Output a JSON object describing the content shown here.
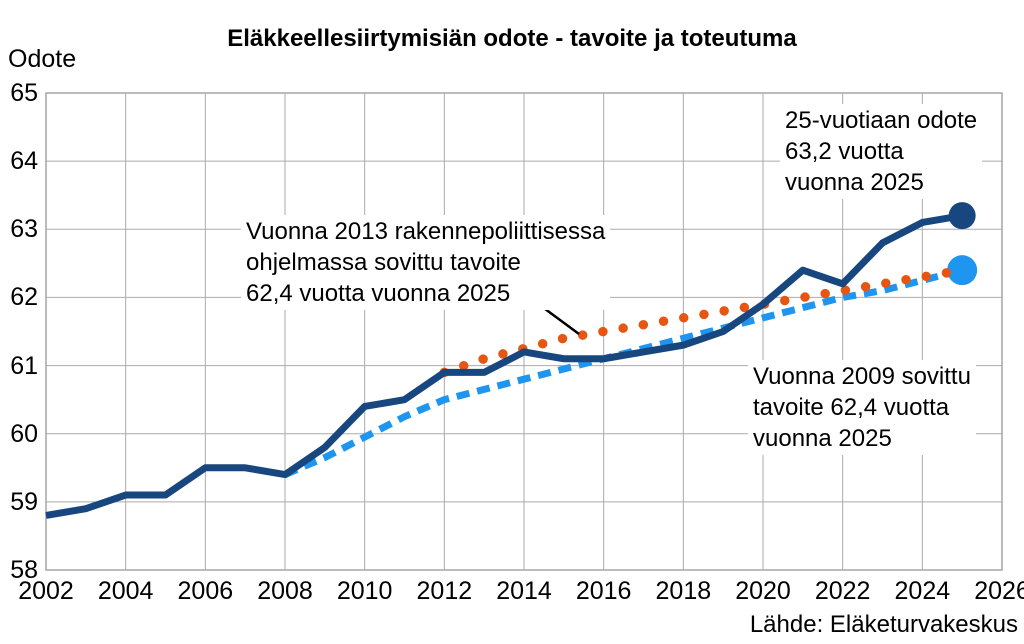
{
  "source": "Lähde: Eläketurvakeskus",
  "annotations": {
    "expectancy_2025": "25-vuotiaan odote\n63,2 vuotta\nvuonna 2025",
    "target_2013": "Vuonna 2013 rakennepoliittisessa\nohjelmassa sovittu tavoite\n62,4 vuotta vuonna 2025",
    "target_2009": "Vuonna 2009 sovittu\ntavoite 62,4 vuotta\nvuonna 2025"
  },
  "colors": {
    "actual": "#17477E",
    "target_2009": "#1E96F0",
    "target_2013": "#E65512",
    "grid": "#ABABAB",
    "border": "#A6A6A6",
    "annotation_pointer": "#000000",
    "text": "#000000"
  },
  "chart_data": {
    "type": "line",
    "title": "Eläkkeellesiirtymisiän odote - tavoite ja toteutuma",
    "xlabel": "",
    "ylabel": "Odote",
    "xlim": [
      2002,
      2026
    ],
    "ylim": [
      58,
      65
    ],
    "x_ticks": [
      2002,
      2004,
      2006,
      2008,
      2010,
      2012,
      2014,
      2016,
      2018,
      2020,
      2022,
      2024,
      2026
    ],
    "y_ticks": [
      58,
      59,
      60,
      61,
      62,
      63,
      64,
      65
    ],
    "grid": true,
    "legend": "none (annotated directly on chart)",
    "series": [
      {
        "name": "25-vuotiaan eläkkeellesiirtymisiän odote (toteutuma)",
        "style": "solid",
        "color": "#17477E",
        "end_dot": true,
        "x": [
          2002,
          2003,
          2004,
          2005,
          2006,
          2007,
          2008,
          2009,
          2010,
          2011,
          2012,
          2013,
          2014,
          2015,
          2016,
          2017,
          2018,
          2019,
          2020,
          2021,
          2022,
          2023,
          2024,
          2025
        ],
        "values": [
          58.8,
          58.9,
          59.1,
          59.1,
          59.5,
          59.5,
          59.4,
          59.8,
          60.4,
          60.5,
          60.9,
          60.9,
          61.2,
          61.1,
          61.1,
          61.2,
          61.3,
          61.5,
          61.9,
          62.4,
          62.2,
          62.8,
          63.1,
          63.2
        ]
      },
      {
        "name": "Vuonna 2009 sovittu tavoite (62,4 vuotta vuonna 2025)",
        "style": "dashed",
        "color": "#1E96F0",
        "end_dot": true,
        "x": [
          2008,
          2009,
          2010,
          2011,
          2012,
          2013,
          2014,
          2015,
          2016,
          2017,
          2018,
          2019,
          2020,
          2021,
          2022,
          2023,
          2024,
          2025
        ],
        "values": [
          59.4,
          59.65,
          59.95,
          60.25,
          60.5,
          60.65,
          60.8,
          60.95,
          61.1,
          61.25,
          61.4,
          61.55,
          61.7,
          61.85,
          62.0,
          62.1,
          62.25,
          62.4
        ]
      },
      {
        "name": "Vuonna 2013 rakennepoliittisessa ohjelmassa sovittu tavoite (62,4 vuotta vuonna 2025)",
        "style": "dotted",
        "color": "#E65512",
        "end_dot": false,
        "x": [
          2012,
          2013,
          2014,
          2015,
          2016,
          2017,
          2018,
          2019,
          2020,
          2021,
          2022,
          2023,
          2024,
          2025
        ],
        "values": [
          60.9,
          61.1,
          61.25,
          61.4,
          61.5,
          61.6,
          61.7,
          61.8,
          61.9,
          62.0,
          62.1,
          62.2,
          62.3,
          62.4
        ]
      }
    ]
  }
}
